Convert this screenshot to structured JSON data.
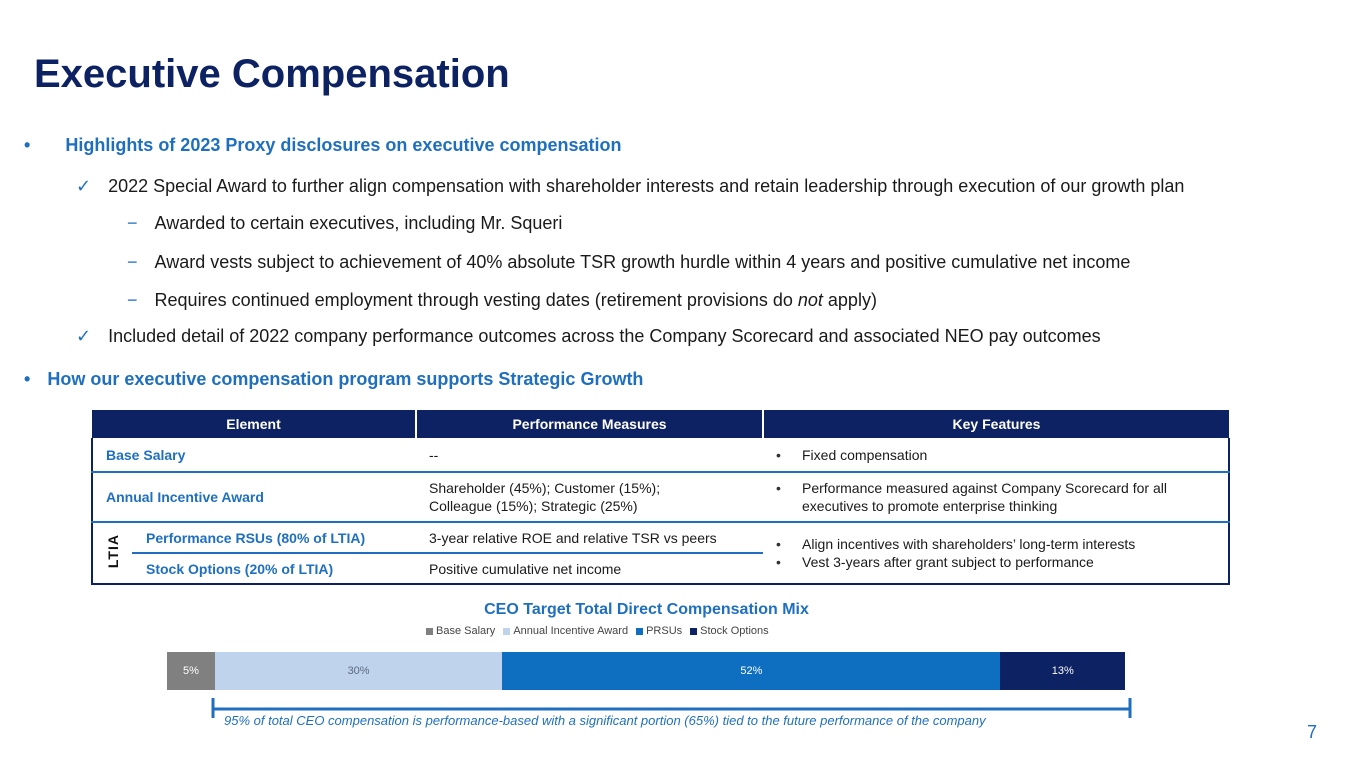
{
  "title": "Executive Compensation",
  "highlights_heading": "Highlights of 2023 Proxy disclosures on executive compensation",
  "bullet_char": "•",
  "check_char": "✓",
  "dash_char": "−",
  "check1": "2022 Special Award to further align compensation with shareholder interests and retain leadership through execution of our growth plan",
  "sub1": "Awarded to certain executives, including Mr. Squeri",
  "sub2": "Award vests subject to achievement of 40% absolute TSR growth hurdle within 4 years and positive cumulative net income",
  "sub3_pre": "Requires continued employment through vesting dates (retirement provisions do ",
  "sub3_em": "not",
  "sub3_post": " apply)",
  "check2": "Included detail of 2022 company performance outcomes across the Company Scorecard and associated NEO pay outcomes",
  "program_heading": "How our executive compensation program supports Strategic Growth",
  "table": {
    "headers": [
      "Element",
      "Performance Measures",
      "Key Features"
    ],
    "base_salary": {
      "element": "Base Salary",
      "measures": "--",
      "features": "Fixed compensation"
    },
    "annual": {
      "element": "Annual Incentive Award",
      "measures_l1": "Shareholder (45%); Customer (15%);",
      "measures_l2": "Colleague (15%); Strategic (25%)",
      "features": "Performance measured against Company Scorecard for all executives to promote enterprise thinking"
    },
    "ltia_label": "LTIA",
    "prsu": {
      "element": "Performance RSUs (80% of LTIA)",
      "measures": "3-year relative ROE and relative TSR vs peers"
    },
    "options": {
      "element": "Stock Options (20% of LTIA)",
      "measures": "Positive cumulative net income"
    },
    "ltia_features": [
      "Align incentives with shareholders’ long-term interests",
      "Vest 3-years after grant subject to performance"
    ]
  },
  "chart_data": {
    "type": "bar",
    "title": "CEO Target Total Direct Compensation Mix",
    "orientation": "horizontal-stacked-100",
    "legend_position": "top",
    "series": [
      {
        "name": "Base Salary",
        "value": 5,
        "label": "5%",
        "color": "#808080",
        "text_color": "#ffffff"
      },
      {
        "name": "Annual Incentive Award",
        "value": 30,
        "label": "30%",
        "color": "#c0d3ec",
        "text_color": "#5a6a80"
      },
      {
        "name": "PRSUs",
        "value": 52,
        "label": "52%",
        "color": "#0e6fc1",
        "text_color": "#ffffff"
      },
      {
        "name": "Stock Options",
        "value": 13,
        "label": "13%",
        "color": "#0c2262",
        "text_color": "#ffffff"
      }
    ]
  },
  "footnote": "95% of total CEO compensation is performance-based with a significant portion (65%) tied to the future performance of the company",
  "page_number": "7"
}
